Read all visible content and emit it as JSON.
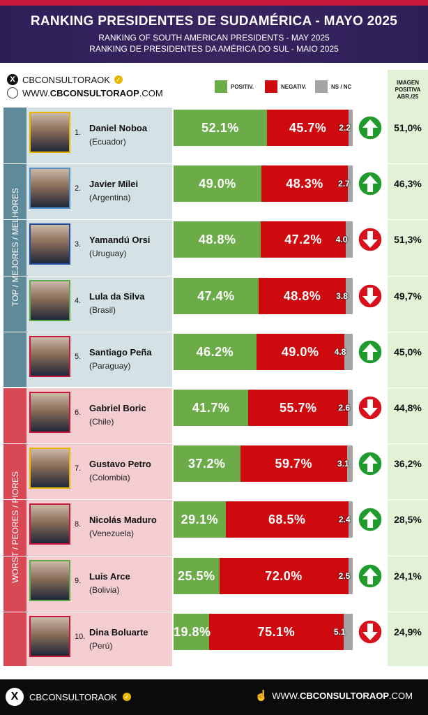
{
  "header": {
    "title": "RANKING PRESIDENTES DE SUDAMÉRICA - MAYO 2025",
    "subtitle_en": "RANKING OF SOUTH AMERICAN PRESIDENTS -  MAY 2025",
    "subtitle_pt": "RANKING DE PRESIDENTES DA AMÉRICA DO SUL - MAIO 2025"
  },
  "brand": {
    "handle": "CBCONSULTORAOK",
    "website_prefix": "WWW.",
    "website_bold": "CBCONSULTORAOP",
    "website_suffix": ".COM"
  },
  "legend": {
    "positive": "POSITIV.",
    "negative": "NEGATIV.",
    "ns": "NS / NC"
  },
  "colors": {
    "positive": "#6bac49",
    "negative": "#cf0a0f",
    "ns": "#a4a4a4",
    "trend_up": "#1f9b2c",
    "trend_down": "#d7101a"
  },
  "image_column_header": [
    "IMAGEN",
    "POSITIVA",
    "ABR./25"
  ],
  "sections": {
    "top": "TOP / MEJORES / MELHORES",
    "worst": "WORST / PEORES / PIORES"
  },
  "chart_data": {
    "type": "bar",
    "stacked": true,
    "categories": [
      "Daniel Noboa",
      "Javier Milei",
      "Yamandú Orsi",
      "Lula da Silva",
      "Santiago Peña",
      "Gabriel Boric",
      "Gustavo Petro",
      "Nicolás Maduro",
      "Luis Arce",
      "Dina Boluarte"
    ],
    "series": [
      {
        "name": "POSITIV.",
        "values": [
          52.1,
          49.0,
          48.8,
          47.4,
          46.2,
          41.7,
          37.2,
          29.1,
          25.5,
          19.8
        ]
      },
      {
        "name": "NEGATIV.",
        "values": [
          45.7,
          48.3,
          47.2,
          48.8,
          49.0,
          55.7,
          59.7,
          68.5,
          72.0,
          75.1
        ]
      },
      {
        "name": "NS / NC",
        "values": [
          2.2,
          2.7,
          4.0,
          3.8,
          4.8,
          2.6,
          3.1,
          2.4,
          2.5,
          5.1
        ]
      }
    ],
    "xlim": [
      0,
      100
    ]
  },
  "rows": [
    {
      "rank": "1.",
      "name": "Daniel Noboa",
      "country": "(Ecuador)",
      "pos": "52.1%",
      "neg": "45.7%",
      "ns": "2.2",
      "trend": "up",
      "image": "51,0%",
      "frame": "#e8b500"
    },
    {
      "rank": "2.",
      "name": "Javier Milei",
      "country": "(Argentina)",
      "pos": "49.0%",
      "neg": "48.3%",
      "ns": "2.7",
      "trend": "up",
      "image": "46,3%",
      "frame": "#4f8ec9"
    },
    {
      "rank": "3.",
      "name": "Yamandú Orsi",
      "country": "(Uruguay)",
      "pos": "48.8%",
      "neg": "47.2%",
      "ns": "4.0",
      "trend": "down",
      "image": "51,3%",
      "frame": "#1f4aa0"
    },
    {
      "rank": "4.",
      "name": "Lula da Silva",
      "country": "(Brasil)",
      "pos": "47.4%",
      "neg": "48.8%",
      "ns": "3.8",
      "trend": "down",
      "image": "49,7%",
      "frame": "#5fa84a"
    },
    {
      "rank": "5.",
      "name": "Santiago Peña",
      "country": "(Paraguay)",
      "pos": "46.2%",
      "neg": "49.0%",
      "ns": "4.8",
      "trend": "up",
      "image": "45,0%",
      "frame": "#c7173a"
    },
    {
      "rank": "6.",
      "name": "Gabriel Boric",
      "country": "(Chile)",
      "pos": "41.7%",
      "neg": "55.7%",
      "ns": "2.6",
      "trend": "down",
      "image": "44,8%",
      "frame": "#c7173a"
    },
    {
      "rank": "7.",
      "name": "Gustavo Petro",
      "country": "(Colombia)",
      "pos": "37.2%",
      "neg": "59.7%",
      "ns": "3.1",
      "trend": "up",
      "image": "36,2%",
      "frame": "#e8b500"
    },
    {
      "rank": "8.",
      "name": "Nicolás Maduro",
      "country": "(Venezuela)",
      "pos": "29.1%",
      "neg": "68.5%",
      "ns": "2.4",
      "trend": "up",
      "image": "28,5%",
      "frame": "#c7173a"
    },
    {
      "rank": "9.",
      "name": "Luis Arce",
      "country": "(Bolivia)",
      "pos": "25.5%",
      "neg": "72.0%",
      "ns": "2.5",
      "trend": "up",
      "image": "24,1%",
      "frame": "#5fa84a"
    },
    {
      "rank": "10.",
      "name": "Dina Boluarte",
      "country": "(Perú)",
      "pos": "19.8%",
      "neg": "75.1%",
      "ns": "5.1",
      "trend": "down",
      "image": "24,9%",
      "frame": "#c7173a"
    }
  ],
  "footer": {
    "handle": "CBCONSULTORAOK",
    "website_prefix": "WWW.",
    "website_bold": "CBCONSULTORAOP",
    "website_suffix": ".COM"
  }
}
